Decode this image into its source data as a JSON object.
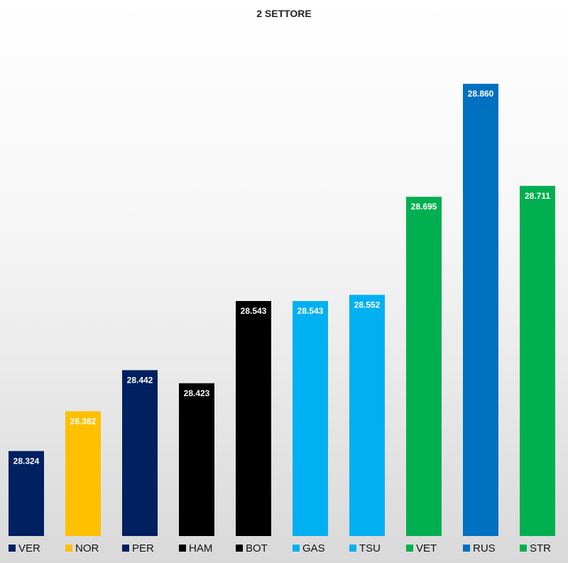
{
  "chart_data": {
    "type": "bar",
    "title": "2 SETTORE",
    "categories": [
      "VER",
      "NOR",
      "PER",
      "HAM",
      "BOT",
      "GAS",
      "TSU",
      "VET",
      "RUS",
      "STR"
    ],
    "values": [
      28.324,
      28.382,
      28.442,
      28.423,
      28.543,
      28.543,
      28.552,
      28.695,
      28.86,
      28.711
    ],
    "labels": [
      "28.324",
      "28.382",
      "28.442",
      "28.423",
      "28.543",
      "28.543",
      "28.552",
      "28.695",
      "28.860",
      "28.711"
    ],
    "colors": [
      "#002060",
      "#FFC000",
      "#002060",
      "#000000",
      "#000000",
      "#00B0F0",
      "#00B0F0",
      "#00B050",
      "#0070C0",
      "#00B050"
    ],
    "ylim": [
      28.2,
      28.9
    ],
    "grid": false,
    "legend_position": "bottom"
  }
}
